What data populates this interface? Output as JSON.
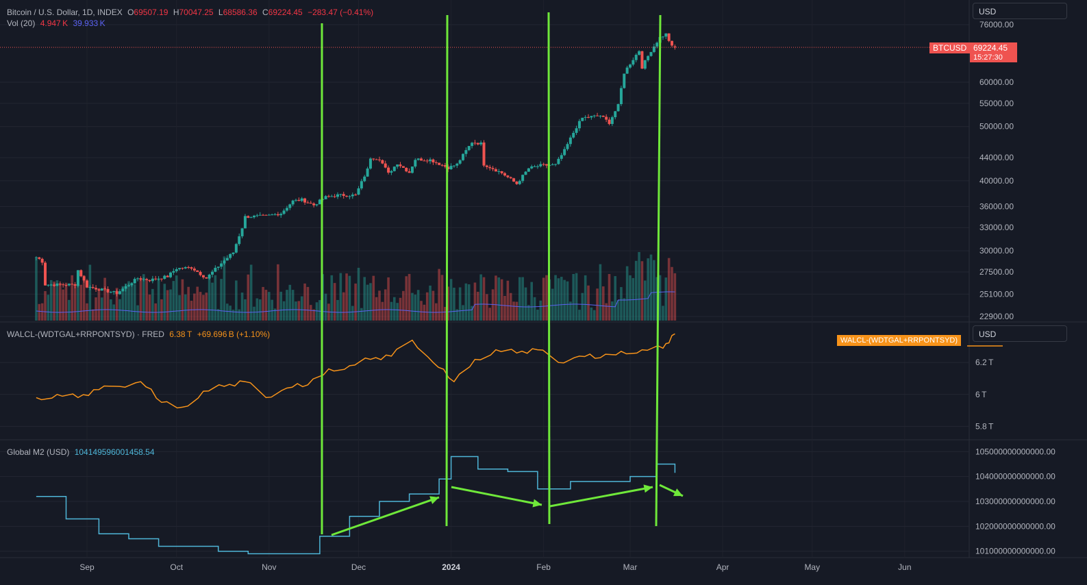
{
  "price_legend": {
    "symbol": "Bitcoin / U.S. Dollar, 1D, INDEX",
    "o_label": "O",
    "o_val": "69507.19",
    "h_label": "H",
    "h_val": "70047.25",
    "l_label": "L",
    "l_val": "68586.36",
    "c_label": "C",
    "c_val": "69224.45",
    "change": "−283.47 (−0.41%)"
  },
  "vol_legend": {
    "label": "Vol (20)",
    "v1": "4.947 K",
    "v2": "39.933 K"
  },
  "walcl_legend": {
    "label": "WALCL-(WDTGAL+RRPONTSYD) · FRED",
    "v1": "6.38 T",
    "v2": "+69.696 B (+1.10%)"
  },
  "m2_legend": {
    "label": "Global M2 (USD)",
    "value": "104149596001458.54"
  },
  "currency_top": "USD",
  "currency_mid": "USD",
  "price_tag": {
    "symbol": "BTCUSD",
    "price": "69224.45",
    "countdown": "15:27:30"
  },
  "walcl_tag": "WALCL-(WDTGAL+RRPONTSYD)",
  "colors": {
    "up": "#26a69a",
    "down": "#ef5350",
    "orange": "#f7931a",
    "m2": "#4fb6d8",
    "annot": "#6fe83a",
    "vol_ma": "#5b62f3"
  },
  "chart_data": [
    {
      "type": "candlestick",
      "title": "Bitcoin / U.S. Dollar, 1D, INDEX",
      "y_scale": "log",
      "ylim": [
        22900,
        76000
      ],
      "y_ticks": [
        "76000.00",
        "60000.00",
        "55000.00",
        "50000.00",
        "44000.00",
        "40000.00",
        "36000.00",
        "33000.00",
        "30000.00",
        "27500.00",
        "25100.00",
        "22900.00"
      ],
      "x_ticks": [
        "Sep",
        "Oct",
        "Nov",
        "Dec",
        "2024",
        "Feb",
        "Mar",
        "Apr",
        "May",
        "Jun"
      ],
      "x_range": [
        "2023-08-15",
        "2024-06-30"
      ],
      "close_path": [
        [
          "2023-08-15",
          29200
        ],
        [
          "2023-08-16",
          29000
        ],
        [
          "2023-08-17",
          28700
        ],
        [
          "2023-08-18",
          26100
        ],
        [
          "2023-08-25",
          26100
        ],
        [
          "2023-08-28",
          26100
        ],
        [
          "2023-08-29",
          27700
        ],
        [
          "2023-09-01",
          25900
        ],
        [
          "2023-09-11",
          25200
        ],
        [
          "2023-09-18",
          26800
        ],
        [
          "2023-09-22",
          26600
        ],
        [
          "2023-09-28",
          27000
        ],
        [
          "2023-10-01",
          27900
        ],
        [
          "2023-10-06",
          28000
        ],
        [
          "2023-10-11",
          26800
        ],
        [
          "2023-10-16",
          28500
        ],
        [
          "2023-10-20",
          29800
        ],
        [
          "2023-10-23",
          33000
        ],
        [
          "2023-10-24",
          34500
        ],
        [
          "2023-10-31",
          34600
        ],
        [
          "2023-11-05",
          35000
        ],
        [
          "2023-11-09",
          36800
        ],
        [
          "2023-11-12",
          37000
        ],
        [
          "2023-11-16",
          36200
        ],
        [
          "2023-11-20",
          37400
        ],
        [
          "2023-11-24",
          37700
        ],
        [
          "2023-11-30",
          37700
        ],
        [
          "2023-12-01",
          38700
        ],
        [
          "2023-12-04",
          41900
        ],
        [
          "2023-12-05",
          44000
        ],
        [
          "2023-12-08",
          43800
        ],
        [
          "2023-12-11",
          41200
        ],
        [
          "2023-12-14",
          43000
        ],
        [
          "2023-12-18",
          41400
        ],
        [
          "2023-12-20",
          43700
        ],
        [
          "2023-12-25",
          43600
        ],
        [
          "2023-12-31",
          42200
        ],
        [
          "2024-01-03",
          42800
        ],
        [
          "2024-01-08",
          46900
        ],
        [
          "2024-01-11",
          46600
        ],
        [
          "2024-01-12",
          42800
        ],
        [
          "2024-01-18",
          41300
        ],
        [
          "2024-01-23",
          39500
        ],
        [
          "2024-01-27",
          42100
        ],
        [
          "2024-01-31",
          42600
        ],
        [
          "2024-02-05",
          42700
        ],
        [
          "2024-02-08",
          45300
        ],
        [
          "2024-02-12",
          49900
        ],
        [
          "2024-02-14",
          51800
        ],
        [
          "2024-02-20",
          52300
        ],
        [
          "2024-02-23",
          50800
        ],
        [
          "2024-02-26",
          54500
        ],
        [
          "2024-02-28",
          62400
        ],
        [
          "2024-03-04",
          68300
        ],
        [
          "2024-03-05",
          63800
        ],
        [
          "2024-03-08",
          68300
        ],
        [
          "2024-03-11",
          72100
        ],
        [
          "2024-03-13",
          73100
        ],
        [
          "2024-03-15",
          69400
        ],
        [
          "2024-03-16",
          69224
        ]
      ],
      "last_price": 69224.45
    },
    {
      "type": "bar",
      "title": "Vol (20)",
      "series": [
        {
          "name": "Vol (20)",
          "ma_last": 39.933,
          "last": 4.947
        }
      ]
    },
    {
      "type": "line",
      "title": "WALCL-(WDTGAL+RRPONTSYD) · FRED",
      "y_ticks": [
        "6.2 T",
        "6 T",
        "5.8 T"
      ],
      "ylim": [
        5.8,
        6.38
      ],
      "x": [
        "2023-08-15",
        "2023-08-22",
        "2023-08-29",
        "2023-09-05",
        "2023-09-12",
        "2023-09-19",
        "2023-09-26",
        "2023-10-03",
        "2023-10-10",
        "2023-10-17",
        "2023-10-24",
        "2023-10-31",
        "2023-11-07",
        "2023-11-14",
        "2023-11-21",
        "2023-11-28",
        "2023-12-05",
        "2023-12-12",
        "2023-12-19",
        "2023-12-26",
        "2024-01-02",
        "2024-01-09",
        "2024-01-16",
        "2024-01-23",
        "2024-01-30",
        "2024-02-06",
        "2024-02-13",
        "2024-02-20",
        "2024-02-27",
        "2024-03-05",
        "2024-03-12",
        "2024-03-16"
      ],
      "values": [
        5.98,
        6.0,
        5.98,
        6.03,
        6.05,
        6.08,
        5.95,
        5.92,
        6.02,
        6.05,
        6.08,
        5.98,
        6.04,
        6.06,
        6.16,
        6.18,
        6.22,
        6.24,
        6.34,
        6.2,
        6.08,
        6.22,
        6.28,
        6.26,
        6.28,
        6.2,
        6.24,
        6.23,
        6.27,
        6.28,
        6.29,
        6.38
      ],
      "last_change": "+69.696 B (+1.10%)"
    },
    {
      "type": "line",
      "title": "Global M2 (USD)",
      "y_ticks": [
        "105000000000000.00",
        "104000000000000.00",
        "103000000000000.00",
        "102000000000000.00",
        "101000000000000.00"
      ],
      "ylim": [
        100800000000000,
        105200000000000
      ],
      "x": [
        "2023-08-15",
        "2023-08-25",
        "2023-09-05",
        "2023-09-15",
        "2023-09-25",
        "2023-10-05",
        "2023-10-15",
        "2023-10-25",
        "2023-11-05",
        "2023-11-18",
        "2023-11-28",
        "2023-12-08",
        "2023-12-18",
        "2023-12-28",
        "2024-01-01",
        "2024-01-10",
        "2024-01-20",
        "2024-01-30",
        "2024-02-10",
        "2024-02-20",
        "2024-03-01",
        "2024-03-10",
        "2024-03-16"
      ],
      "values": [
        103200000000000,
        102300000000000,
        101700000000000,
        101500000000000,
        101200000000000,
        101200000000000,
        101000000000000,
        100900000000000,
        100900000000000,
        101600000000000,
        102400000000000,
        103000000000000,
        103300000000000,
        103900000000000,
        104800000000000,
        104300000000000,
        104200000000000,
        103500000000000,
        103800000000000,
        103800000000000,
        104000000000000,
        104500000000000,
        104150000000000
      ],
      "last_value": "104149596001458.54"
    }
  ]
}
